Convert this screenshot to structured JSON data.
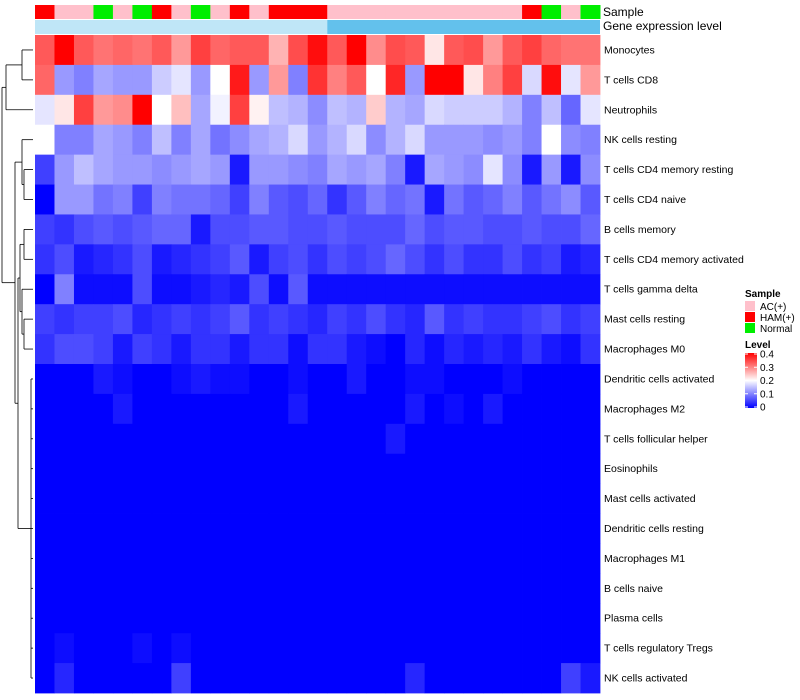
{
  "chart_data": {
    "type": "heatmap",
    "annotation_tracks": [
      "Sample",
      "Gene expression level"
    ],
    "sample_groups": [
      "HAM(+)",
      "AC(+)",
      "AC(+)",
      "Normal",
      "AC(+)",
      "Normal",
      "HAM(+)",
      "AC(+)",
      "Normal",
      "AC(+)",
      "HAM(+)",
      "AC(+)",
      "HAM(+)",
      "HAM(+)",
      "HAM(+)",
      "AC(+)",
      "AC(+)",
      "AC(+)",
      "AC(+)",
      "AC(+)",
      "AC(+)",
      "AC(+)",
      "AC(+)",
      "AC(+)",
      "AC(+)",
      "HAM(+)",
      "Normal",
      "AC(+)",
      "Normal"
    ],
    "rows": [
      "Monocytes",
      "T cells CD8",
      "Neutrophils",
      "NK cells resting",
      "T cells CD4 memory resting",
      "T cells CD4 naive",
      "B cells memory",
      "T cells CD4 memory activated",
      "T cells gamma delta",
      "Mast cells resting",
      "Macrophages M0",
      "Dendritic cells activated",
      "Macrophages M2",
      "T cells follicular helper",
      "Eosinophils",
      "Mast cells activated",
      "Dendritic cells resting",
      "Macrophages M1",
      "B cells naive",
      "Plasma cells",
      "T cells regulatory  Tregs",
      "NK cells activated"
    ],
    "values": [
      [
        0.33,
        0.4,
        0.33,
        0.31,
        0.32,
        0.31,
        0.33,
        0.28,
        0.35,
        0.32,
        0.33,
        0.33,
        0.26,
        0.34,
        0.39,
        0.33,
        0.41,
        0.29,
        0.34,
        0.33,
        0.22,
        0.33,
        0.34,
        0.28,
        0.33,
        0.35,
        0.32,
        0.31,
        0.31
      ],
      [
        0.32,
        0.12,
        0.1,
        0.13,
        0.12,
        0.12,
        0.16,
        0.18,
        0.12,
        0.2,
        0.38,
        0.12,
        0.28,
        0.1,
        0.36,
        0.3,
        0.33,
        0.2,
        0.37,
        0.12,
        0.4,
        0.4,
        0.22,
        0.3,
        0.35,
        0.17,
        0.39,
        0.18,
        0.28
      ],
      [
        0.18,
        0.22,
        0.35,
        0.28,
        0.29,
        0.4,
        0.2,
        0.25,
        0.13,
        0.19,
        0.35,
        0.21,
        0.15,
        0.14,
        0.11,
        0.15,
        0.14,
        0.24,
        0.14,
        0.13,
        0.17,
        0.16,
        0.16,
        0.16,
        0.14,
        0.1,
        0.15,
        0.08,
        0.18
      ],
      [
        0.2,
        0.1,
        0.1,
        0.13,
        0.12,
        0.1,
        0.15,
        0.1,
        0.13,
        0.09,
        0.11,
        0.13,
        0.14,
        0.17,
        0.12,
        0.14,
        0.17,
        0.11,
        0.14,
        0.17,
        0.12,
        0.12,
        0.12,
        0.11,
        0.12,
        0.1,
        0.2,
        0.11,
        0.1
      ],
      [
        0.05,
        0.12,
        0.15,
        0.13,
        0.12,
        0.12,
        0.11,
        0.12,
        0.13,
        0.12,
        0.02,
        0.12,
        0.12,
        0.11,
        0.1,
        0.13,
        0.12,
        0.13,
        0.1,
        0.02,
        0.13,
        0.12,
        0.11,
        0.18,
        0.11,
        0.02,
        0.12,
        0.02,
        0.11
      ],
      [
        0.0,
        0.12,
        0.12,
        0.09,
        0.1,
        0.05,
        0.1,
        0.09,
        0.09,
        0.08,
        0.05,
        0.1,
        0.07,
        0.06,
        0.08,
        0.04,
        0.07,
        0.1,
        0.08,
        0.09,
        0.02,
        0.09,
        0.07,
        0.08,
        0.1,
        0.07,
        0.09,
        0.11,
        0.07
      ],
      [
        0.05,
        0.04,
        0.06,
        0.07,
        0.06,
        0.07,
        0.08,
        0.08,
        0.02,
        0.06,
        0.06,
        0.07,
        0.07,
        0.06,
        0.06,
        0.07,
        0.06,
        0.06,
        0.06,
        0.08,
        0.06,
        0.07,
        0.07,
        0.06,
        0.06,
        0.07,
        0.06,
        0.06,
        0.08
      ],
      [
        0.04,
        0.06,
        0.02,
        0.03,
        0.04,
        0.06,
        0.02,
        0.03,
        0.04,
        0.05,
        0.07,
        0.02,
        0.05,
        0.06,
        0.04,
        0.06,
        0.05,
        0.06,
        0.08,
        0.06,
        0.04,
        0.06,
        0.04,
        0.04,
        0.06,
        0.04,
        0.05,
        0.02,
        0.03
      ],
      [
        0.0,
        0.1,
        0.01,
        0.01,
        0.01,
        0.06,
        0.01,
        0.01,
        0.02,
        0.03,
        0.02,
        0.06,
        0.01,
        0.07,
        0.01,
        0.01,
        0.01,
        0.01,
        0.01,
        0.01,
        0.01,
        0.01,
        0.01,
        0.01,
        0.01,
        0.01,
        0.01,
        0.01,
        0.01
      ],
      [
        0.05,
        0.04,
        0.05,
        0.05,
        0.06,
        0.03,
        0.04,
        0.05,
        0.04,
        0.05,
        0.07,
        0.04,
        0.05,
        0.04,
        0.03,
        0.05,
        0.04,
        0.06,
        0.04,
        0.03,
        0.07,
        0.04,
        0.05,
        0.04,
        0.04,
        0.05,
        0.06,
        0.04,
        0.05
      ],
      [
        0.04,
        0.06,
        0.06,
        0.05,
        0.02,
        0.05,
        0.04,
        0.02,
        0.04,
        0.04,
        0.02,
        0.04,
        0.04,
        0.01,
        0.04,
        0.04,
        0.02,
        0.01,
        0.0,
        0.03,
        0.01,
        0.03,
        0.02,
        0.03,
        0.02,
        0.04,
        0.02,
        0.01,
        0.04
      ],
      [
        0.0,
        0.0,
        0.0,
        0.02,
        0.01,
        0.0,
        0.0,
        0.01,
        0.02,
        0.01,
        0.01,
        0.0,
        0.0,
        0.01,
        0.0,
        0.0,
        0.02,
        0.0,
        0.0,
        0.01,
        0.01,
        0.0,
        0.0,
        0.0,
        0.01,
        0.0,
        0.0,
        0.0,
        0.0
      ],
      [
        0.0,
        0.0,
        0.0,
        0.0,
        0.02,
        0.0,
        0.0,
        0.0,
        0.0,
        0.0,
        0.0,
        0.0,
        0.0,
        0.02,
        0.0,
        0.0,
        0.0,
        0.0,
        0.0,
        0.02,
        0.0,
        0.01,
        0.0,
        0.02,
        0.0,
        0.0,
        0.0,
        0.0,
        0.0
      ],
      [
        0.0,
        0.0,
        0.0,
        0.0,
        0.0,
        0.0,
        0.0,
        0.0,
        0.0,
        0.0,
        0.0,
        0.0,
        0.0,
        0.0,
        0.0,
        0.0,
        0.0,
        0.0,
        0.02,
        0.0,
        0.0,
        0.0,
        0.0,
        0.0,
        0.0,
        0.0,
        0.0,
        0.0,
        0.0
      ],
      [
        0,
        0,
        0,
        0,
        0,
        0,
        0,
        0,
        0,
        0,
        0,
        0,
        0,
        0,
        0,
        0,
        0,
        0,
        0,
        0,
        0,
        0,
        0,
        0,
        0,
        0,
        0,
        0,
        0
      ],
      [
        0,
        0,
        0,
        0,
        0,
        0,
        0,
        0,
        0,
        0,
        0,
        0,
        0,
        0,
        0,
        0,
        0,
        0,
        0,
        0,
        0,
        0,
        0,
        0,
        0,
        0,
        0,
        0,
        0
      ],
      [
        0,
        0,
        0,
        0,
        0,
        0,
        0,
        0,
        0,
        0,
        0,
        0,
        0,
        0,
        0,
        0,
        0,
        0,
        0,
        0,
        0,
        0,
        0,
        0,
        0,
        0,
        0,
        0,
        0
      ],
      [
        0,
        0,
        0,
        0,
        0,
        0,
        0,
        0,
        0,
        0,
        0,
        0,
        0,
        0,
        0,
        0,
        0,
        0,
        0,
        0,
        0,
        0,
        0,
        0,
        0,
        0,
        0,
        0,
        0
      ],
      [
        0,
        0,
        0,
        0,
        0,
        0,
        0,
        0,
        0,
        0,
        0,
        0,
        0,
        0,
        0,
        0,
        0,
        0,
        0,
        0,
        0,
        0,
        0,
        0,
        0,
        0,
        0,
        0,
        0
      ],
      [
        0,
        0,
        0,
        0,
        0,
        0,
        0,
        0,
        0,
        0,
        0,
        0,
        0,
        0,
        0,
        0,
        0,
        0,
        0,
        0,
        0,
        0,
        0,
        0,
        0,
        0,
        0,
        0,
        0
      ],
      [
        0.0,
        0.01,
        0.0,
        0.0,
        0.0,
        0.01,
        0.0,
        0.01,
        0.0,
        0.0,
        0.0,
        0.0,
        0.0,
        0.0,
        0.0,
        0.0,
        0.0,
        0.0,
        0.0,
        0.0,
        0.0,
        0.0,
        0.0,
        0.0,
        0.0,
        0.0,
        0.0,
        0.0,
        0.0
      ],
      [
        0.0,
        0.03,
        0.0,
        0.0,
        0.0,
        0.0,
        0.0,
        0.05,
        0.0,
        0.0,
        0.0,
        0.0,
        0.0,
        0.0,
        0.0,
        0.0,
        0.0,
        0.0,
        0.0,
        0.03,
        0.0,
        0.0,
        0.0,
        0.0,
        0.0,
        0.0,
        0.0,
        0.05,
        0.02
      ]
    ],
    "legend_sample": {
      "title": "Sample",
      "entries": [
        {
          "label": "AC(+)",
          "color": "#ffc0cb"
        },
        {
          "label": "HAM(+)",
          "color": "#ff0000"
        },
        {
          "label": "Normal",
          "color": "#00ee00"
        }
      ]
    },
    "legend_level": {
      "title": "Level",
      "ticks": [
        "0.4",
        "0.3",
        "0.2",
        "0.1",
        "0"
      ],
      "range": [
        0,
        0.4
      ]
    },
    "colors": {
      "low": "#0000ff",
      "mid": "#ffffff",
      "high": "#ff0000",
      "expression_bar": "#63c1ec",
      "expression_bar_light": "#bfe6f7"
    }
  }
}
